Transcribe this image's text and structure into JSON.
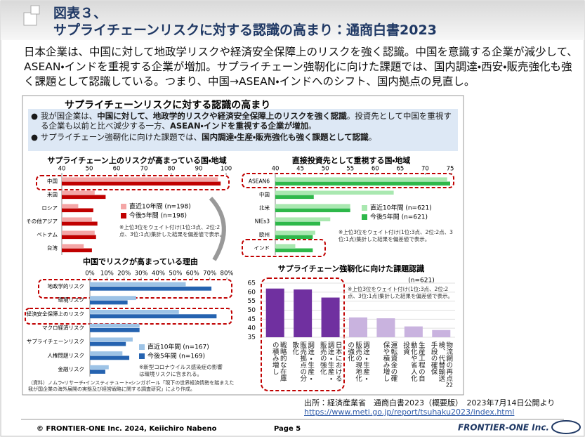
{
  "header": {
    "label": "図表３、",
    "title": "サプライチェーンリスクに対する認識の高まり：通商白書2023"
  },
  "body": "日本企業は、中国に対して地政学リスクや経済安全保障上のリスクを強く認識。中国を意識する企業が減少して、ASEAN・インドを重視する企業が増加。サプライチェーン強靭化に向けた課題では、国内調達・西安・販売強化も強く課題として認識している。つまり、中国→ASEAN・インドへのシフト、国内拠点の見直し。",
  "panel": {
    "title": "サプライチェーンリスクに対する認識の高まり",
    "bullets": [
      [
        "我が国企業は、",
        "中国に対して、地政学的リスクや経済安全保障上のリスクを強く認識",
        "。投資先として中国を重視する企業も以前と比べ減少する一方、",
        "ASEAN・インドを重視する企業が増加",
        "。"
      ],
      [
        "サプライチェーン強靭化に向けた課題では、",
        "国内調達・生産・販売強化も強く課題として認識",
        "。"
      ]
    ],
    "source": "（資料）ノムラ・リサーチ・インスティテュート・シンガポール「現下の世界経済情勢を踏まえた我が国企業の海外展開の実態及び経営戦略に関する調査研究」により作成。",
    "page": "22"
  },
  "chart_data": [
    {
      "type": "bar",
      "orientation": "horizontal",
      "title": "サプライチェーン上のリスクが高まっている国・地域",
      "note": "※上位3位をウェイト付け(1位:3点、2位:2点、3位:1点)集計した結果を偏差値で表示。",
      "categories": [
        "中国",
        "米国",
        "ロシア",
        "その他アジア",
        "ベトナム",
        "台湾"
      ],
      "series": [
        {
          "name": "直近10年間 (n=198)",
          "color": "#f4a6a6",
          "values": [
            97,
            52,
            46,
            51,
            52,
            48
          ]
        },
        {
          "name": "今後5年間 (n=198)",
          "color": "#c00000",
          "values": [
            98,
            56,
            51.5,
            53,
            52.5,
            51
          ]
        }
      ],
      "xlim": [
        40,
        100
      ],
      "xticks": [
        40,
        50,
        60,
        70,
        80,
        90,
        100
      ]
    },
    {
      "type": "bar",
      "orientation": "horizontal",
      "title": "直接投資先として重視する国・地域",
      "note": "※上位3位をウェイト付け(1位:3点、2位:2点、3位:1点)集計した結果を偏差値で表示。",
      "categories": [
        "ASEAN6",
        "中国",
        "北米",
        "NIEs3",
        "欧州",
        "インド"
      ],
      "series": [
        {
          "name": "直近10年間 (n=621)",
          "color": "#a9e8b0",
          "values": [
            74.4,
            63.7,
            55,
            51,
            48,
            44
          ]
        },
        {
          "name": "今後5年間 (n=621)",
          "color": "#2eb84a",
          "values": [
            75,
            47.7,
            55,
            49,
            47.5,
            47.5
          ]
        }
      ],
      "xlim": [
        40,
        75
      ],
      "xticks": [
        40,
        45,
        50,
        55,
        60,
        65,
        70,
        75
      ]
    },
    {
      "type": "bar",
      "orientation": "horizontal",
      "title": "中国でリスクが高まっている理由",
      "note": "※新型コロナウイルス感染症の影響は環境リスクに含まれる。",
      "categories": [
        "地政学的リスク",
        "環境リスク",
        "経済安全保障上のリスク",
        "マクロ経済リスク",
        "サプライチェーンリスク",
        "人権問題リスク",
        "金融リスク"
      ],
      "series": [
        {
          "name": "直近10年間 (n=167)",
          "color": "#9dc3e6",
          "values": [
            56,
            27,
            52,
            29,
            25,
            19,
            11
          ]
        },
        {
          "name": "今後5年間 (n=169)",
          "color": "#2563b0",
          "values": [
            71,
            22,
            74,
            29,
            21,
            23,
            9
          ]
        }
      ],
      "xlim": [
        0,
        80
      ],
      "xticks": [
        {
          "value": 0,
          "label": "0%"
        },
        {
          "value": 10,
          "label": "10%"
        },
        {
          "value": 20,
          "label": "20%"
        },
        {
          "value": 30,
          "label": "30%"
        },
        {
          "value": 40,
          "label": "40%"
        },
        {
          "value": 50,
          "label": "50%"
        },
        {
          "value": 60,
          "label": "60%"
        },
        {
          "value": 70,
          "label": "70%"
        },
        {
          "value": 80,
          "label": "80%"
        }
      ]
    },
    {
      "type": "bar",
      "orientation": "vertical",
      "title": "サプライチェーン強靭化に向けた課題認識",
      "subtitle": "(n=621)",
      "note": "※上位3位をウェイト付け(1位:3点、2位:2点、3位:1点)集計した結果を偏差値で表示。",
      "categories": [
        "戦略的な在庫の積み増し",
        "調達・生産・販売拠点の分散化",
        "日本における調達・生産・販売の強化",
        "調達・生産・販売の現地化の強化",
        "運転資金の確保や積み増し",
        "生産工程の自動化や省人化投資",
        "物流網の再点検、代替輸送手段の確保"
      ],
      "values": [
        62,
        61.5,
        57,
        46,
        45.5,
        41,
        39
      ],
      "colors": [
        "#7030a0",
        "#7030a0",
        "#7030a0",
        "#c9b3df",
        "#c9b3df",
        "#c9b3df",
        "#c9b3df"
      ],
      "ylim": [
        35,
        65
      ],
      "yticks": [
        35,
        40,
        45,
        50,
        55,
        60,
        65
      ],
      "grid": true
    }
  ],
  "footer": {
    "source": "出所：経済産業省　通商白書2023（概要版）　2023年7月14日公開より",
    "url": "https://www.meti.go.jp/report/tsuhaku2023/index.html",
    "copyright": "© FRONTIER-ONE Inc. 2024,  Keiichiro  Nabeno",
    "page": "Page 5",
    "logo": "FRONTIER-ONE Inc."
  }
}
